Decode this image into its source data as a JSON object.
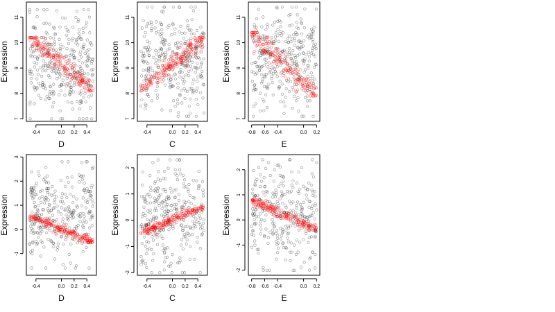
{
  "figure": {
    "colors": {
      "observed": "#000000",
      "fitted": "#ff0000"
    }
  },
  "chart_data": [
    {
      "type": "scatter",
      "panel": "top-left",
      "xlabel": "D",
      "ylabel": "Expression",
      "xlim": [
        -0.55,
        0.55
      ],
      "ylim": [
        6.9,
        11.6
      ],
      "xticks": [
        -0.4,
        0.0,
        0.2,
        0.4
      ],
      "xtick_labels": [
        "-0.4",
        "0.0",
        "0.2",
        "0.4"
      ],
      "yticks": [
        7,
        8,
        9,
        10,
        11
      ],
      "ytick_labels": [
        "7",
        "8",
        "9",
        "10",
        "11"
      ],
      "series": [
        {
          "role": "observed",
          "color": "#000000",
          "x_min": -0.5,
          "x_max": 0.5,
          "y_min": 7.0,
          "y_max": 11.3,
          "n_points": 320
        },
        {
          "role": "fitted",
          "color": "#ff0000",
          "x_min": -0.5,
          "x_max": 0.5,
          "y_min": 8.1,
          "y_max": 10.2,
          "n_points": 200
        }
      ]
    },
    {
      "type": "scatter",
      "panel": "top-middle",
      "xlabel": "C",
      "ylabel": "Expression",
      "xlim": [
        -0.55,
        0.55
      ],
      "ylim": [
        6.9,
        11.6
      ],
      "xticks": [
        -0.4,
        0.0,
        0.2,
        0.4
      ],
      "xtick_labels": [
        "-0.4",
        "0.0",
        "0.2",
        "0.4"
      ],
      "yticks": [
        7,
        8,
        9,
        10,
        11
      ],
      "ytick_labels": [
        "7",
        "8",
        "9",
        "10",
        "11"
      ],
      "series": [
        {
          "role": "observed",
          "color": "#000000",
          "x_min": -0.5,
          "x_max": 0.5,
          "y_min": 7.1,
          "y_max": 11.4,
          "n_points": 320
        },
        {
          "role": "fitted",
          "color": "#ff0000",
          "x_min": -0.5,
          "x_max": 0.5,
          "y_min": 8.1,
          "y_max": 10.2,
          "n_points": 200
        }
      ]
    },
    {
      "type": "scatter",
      "panel": "top-right",
      "xlabel": "E",
      "ylabel": "Expression",
      "xlim": [
        -0.85,
        0.25
      ],
      "ylim": [
        6.9,
        11.6
      ],
      "xticks": [
        -0.8,
        -0.6,
        -0.4,
        0.0,
        0.2
      ],
      "xtick_labels": [
        "-0.8",
        "-0.6",
        "-0.4",
        "0.0",
        "0.2"
      ],
      "yticks": [
        7,
        8,
        9,
        10,
        11
      ],
      "ytick_labels": [
        "7",
        "8",
        "9",
        "10",
        "11"
      ],
      "series": [
        {
          "role": "observed",
          "color": "#000000",
          "x_min": -0.8,
          "x_max": 0.2,
          "y_min": 7.1,
          "y_max": 11.4,
          "n_points": 320
        },
        {
          "role": "fitted",
          "color": "#ff0000",
          "x_min": -0.8,
          "x_max": 0.2,
          "y_min": 7.9,
          "y_max": 10.4,
          "n_points": 200
        }
      ]
    },
    {
      "type": "scatter",
      "panel": "bottom-left",
      "xlabel": "D",
      "ylabel": "Expression",
      "xlim": [
        -0.55,
        0.55
      ],
      "ylim": [
        -1.9,
        3.1
      ],
      "xticks": [
        -0.4,
        0.0,
        0.2,
        0.4
      ],
      "xtick_labels": [
        "-0.4",
        "0.0",
        "0.2",
        "0.4"
      ],
      "yticks": [
        -1,
        0,
        1,
        2,
        3
      ],
      "ytick_labels": [
        "-1",
        "0",
        "1",
        "2",
        "3"
      ],
      "series": [
        {
          "role": "observed",
          "color": "#000000",
          "x_min": -0.5,
          "x_max": 0.5,
          "y_min": -1.6,
          "y_max": 2.8,
          "n_points": 300
        },
        {
          "role": "fitted",
          "color": "#ff0000",
          "x_min": -0.5,
          "x_max": 0.5,
          "y_min": -0.55,
          "y_max": 0.55,
          "n_points": 200
        }
      ]
    },
    {
      "type": "scatter",
      "panel": "bottom-middle",
      "xlabel": "C",
      "ylabel": "Expression",
      "xlim": [
        -0.55,
        0.55
      ],
      "ylim": [
        -2.1,
        2.5
      ],
      "xticks": [
        -0.4,
        0.0,
        0.2,
        0.4
      ],
      "xtick_labels": [
        "-0.4",
        "0.0",
        "0.2",
        "0.4"
      ],
      "yticks": [
        -2,
        -1,
        0,
        1,
        2
      ],
      "ytick_labels": [
        "-2",
        "-1",
        "0",
        "1",
        "2"
      ],
      "series": [
        {
          "role": "observed",
          "color": "#000000",
          "x_min": -0.5,
          "x_max": 0.5,
          "y_min": -2.0,
          "y_max": 2.3,
          "n_points": 300
        },
        {
          "role": "fitted",
          "color": "#ff0000",
          "x_min": -0.5,
          "x_max": 0.5,
          "y_min": -0.5,
          "y_max": 0.55,
          "n_points": 200
        }
      ]
    },
    {
      "type": "scatter",
      "panel": "bottom-right",
      "xlabel": "E",
      "ylabel": "Expression",
      "xlim": [
        -0.85,
        0.25
      ],
      "ylim": [
        -2.2,
        2.6
      ],
      "xticks": [
        -0.8,
        -0.6,
        -0.4,
        0.0,
        0.2
      ],
      "xtick_labels": [
        "-0.8",
        "-0.6",
        "-0.4",
        "0.0",
        "0.2"
      ],
      "yticks": [
        -2,
        -1,
        0,
        1,
        2
      ],
      "ytick_labels": [
        "-2",
        "-1",
        "0",
        "1",
        "2"
      ],
      "series": [
        {
          "role": "observed",
          "color": "#000000",
          "x_min": -0.8,
          "x_max": 0.2,
          "y_min": -2.0,
          "y_max": 2.4,
          "n_points": 300
        },
        {
          "role": "fitted",
          "color": "#ff0000",
          "x_min": -0.8,
          "x_max": 0.2,
          "y_min": -0.4,
          "y_max": 0.8,
          "n_points": 200
        }
      ]
    }
  ]
}
